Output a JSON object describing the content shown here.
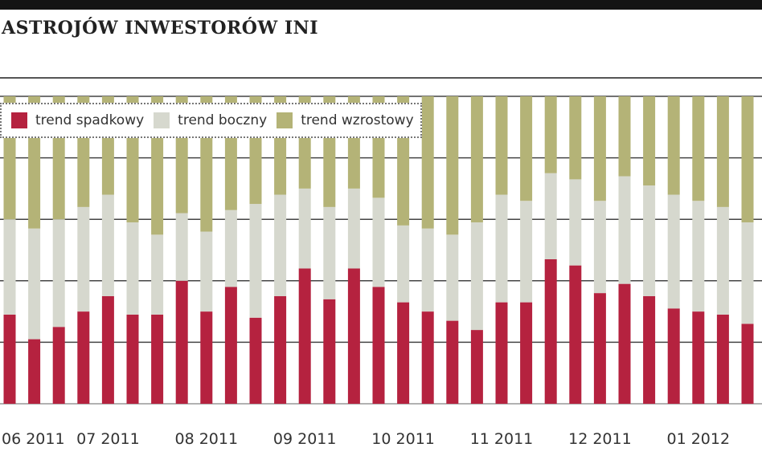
{
  "title": "ASTROJÓW INWESTORÓW INI",
  "chart_data": {
    "type": "bar",
    "stacked": true,
    "normalized_percent": true,
    "ylim": [
      0,
      100
    ],
    "grid": true,
    "legend_placement": "top-left",
    "x_tick_labels": [
      "06 2011",
      "07 2011",
      "08 2011",
      "09 2011",
      "10 2011",
      "11 2011",
      "12 2011",
      "01 2012"
    ],
    "series": [
      {
        "name": "trend spadkowy",
        "color": "#b5223f",
        "values": [
          29,
          21,
          25,
          30,
          35,
          29,
          29,
          40,
          30,
          38,
          28,
          35,
          44,
          34,
          44,
          38,
          33,
          30,
          27,
          24,
          33,
          33,
          47,
          45,
          36,
          39,
          35,
          31,
          30,
          29,
          26
        ]
      },
      {
        "name": "trend boczny",
        "color": "#d6d8ce",
        "values": [
          31,
          36,
          35,
          34,
          33,
          30,
          26,
          22,
          26,
          25,
          37,
          33,
          26,
          30,
          26,
          29,
          25,
          27,
          28,
          35,
          35,
          33,
          28,
          28,
          30,
          35,
          36,
          37,
          36,
          35,
          33
        ]
      },
      {
        "name": "trend wzrostowy",
        "color": "#b4b377",
        "values": [
          40,
          43,
          40,
          36,
          32,
          41,
          45,
          38,
          44,
          37,
          35,
          32,
          30,
          36,
          30,
          33,
          42,
          43,
          45,
          41,
          32,
          34,
          25,
          27,
          34,
          26,
          29,
          32,
          34,
          36,
          41
        ]
      }
    ]
  }
}
